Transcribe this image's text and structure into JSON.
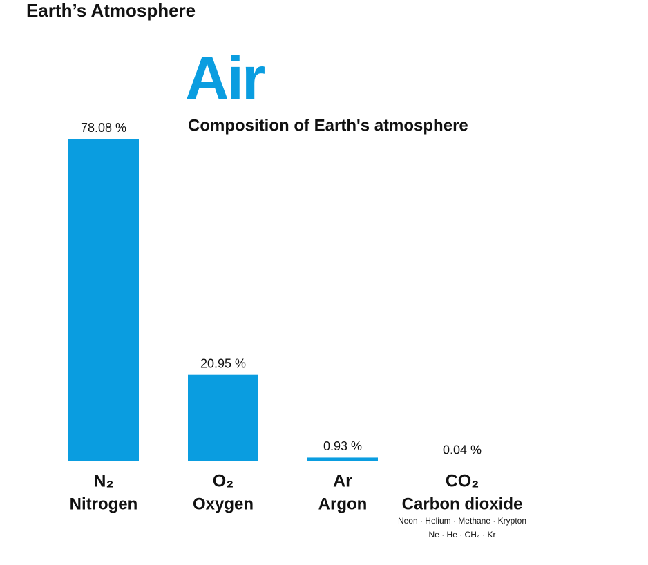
{
  "header": {
    "title": "Earth’s Atmosphere"
  },
  "chart_data": {
    "type": "bar",
    "title": "Air",
    "subtitle": "Composition of Earth's atmosphere",
    "categories": [
      "N₂",
      "O₂",
      "Ar",
      "CO₂"
    ],
    "category_names": [
      "Nitrogen",
      "Oxygen",
      "Argon",
      "Carbon dioxide"
    ],
    "values": [
      78.08,
      20.95,
      0.93,
      0.04
    ],
    "value_labels": [
      "78.08 %",
      "20.95 %",
      "0.93 %",
      "0.04 %"
    ],
    "color": "#0a9de0",
    "annotations": [
      "Neon · Helium · Methane · Krypton",
      "Ne · He · CH₄ · Kr"
    ]
  }
}
